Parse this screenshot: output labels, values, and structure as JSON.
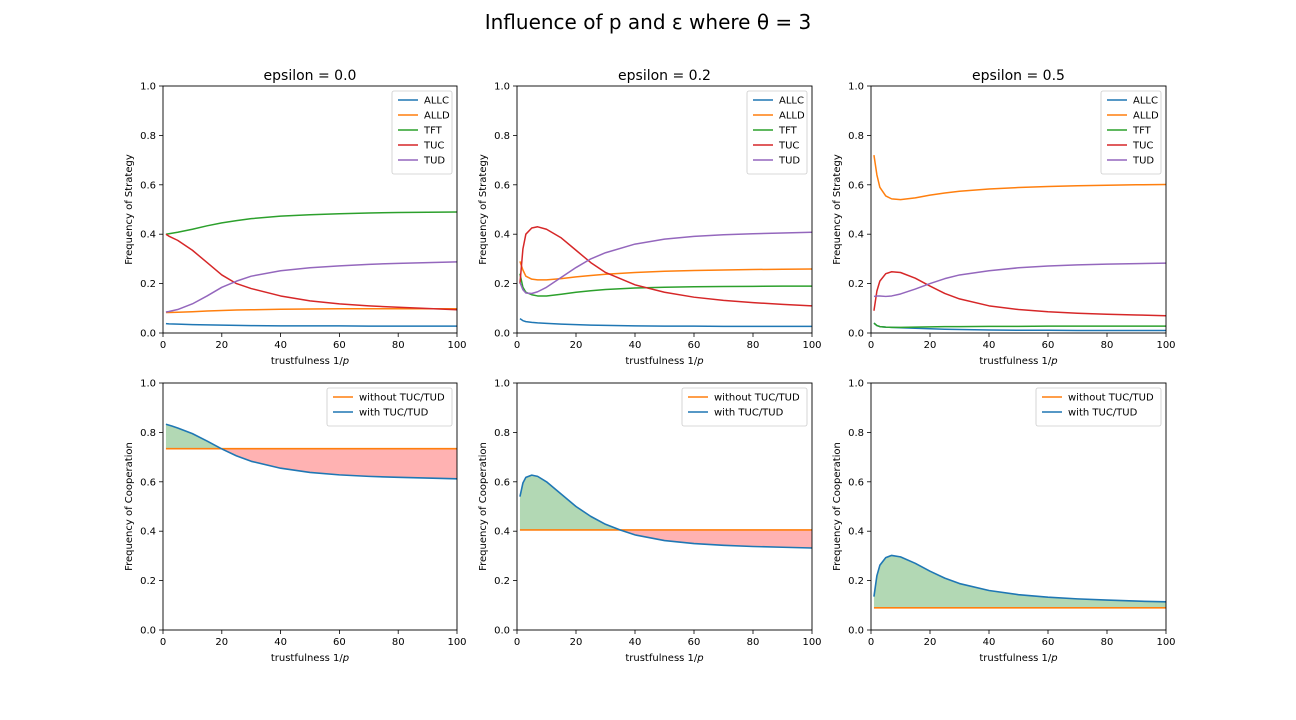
{
  "figure": {
    "suptitle": "Influence of p and ε where θ = 3"
  },
  "colors": {
    "ALLC": "#1f77b4",
    "ALLD": "#ff7f0e",
    "TFT": "#2ca02c",
    "TUC": "#d62728",
    "TUD": "#9467bd",
    "without": "#ff7f0e",
    "with": "#1f77b4",
    "gain_fill": "#b2d8b4",
    "loss_fill": "#ffb2b2"
  },
  "chart_data": [
    {
      "type": "line",
      "title": "epsilon = 0.0",
      "xlabel": "trustfulness 1/p",
      "ylabel": "Frequency of Strategy",
      "xlim": [
        0,
        100
      ],
      "ylim": [
        0,
        1
      ],
      "xticks": [
        0,
        20,
        40,
        60,
        80,
        100
      ],
      "yticks": [
        0.0,
        0.2,
        0.4,
        0.6,
        0.8,
        1.0
      ],
      "legend": "top-right",
      "x": [
        1,
        2,
        5,
        10,
        15,
        20,
        25,
        30,
        40,
        50,
        60,
        70,
        80,
        90,
        100
      ],
      "series": [
        {
          "name": "ALLC",
          "values": [
            0.038,
            0.037,
            0.036,
            0.034,
            0.033,
            0.032,
            0.031,
            0.03,
            0.029,
            0.029,
            0.029,
            0.028,
            0.028,
            0.028,
            0.028
          ]
        },
        {
          "name": "ALLD",
          "values": [
            0.083,
            0.083,
            0.084,
            0.086,
            0.089,
            0.091,
            0.093,
            0.094,
            0.096,
            0.097,
            0.098,
            0.098,
            0.098,
            0.098,
            0.098
          ]
        },
        {
          "name": "TFT",
          "values": [
            0.4,
            0.402,
            0.408,
            0.42,
            0.434,
            0.446,
            0.455,
            0.463,
            0.473,
            0.479,
            0.483,
            0.486,
            0.488,
            0.489,
            0.49
          ]
        },
        {
          "name": "TUC",
          "values": [
            0.4,
            0.392,
            0.375,
            0.335,
            0.285,
            0.235,
            0.2,
            0.18,
            0.15,
            0.13,
            0.118,
            0.11,
            0.104,
            0.099,
            0.094
          ]
        },
        {
          "name": "TUD",
          "values": [
            0.085,
            0.087,
            0.095,
            0.118,
            0.15,
            0.185,
            0.21,
            0.23,
            0.252,
            0.264,
            0.272,
            0.278,
            0.282,
            0.285,
            0.288
          ]
        }
      ]
    },
    {
      "type": "line",
      "title": "epsilon = 0.2",
      "xlabel": "trustfulness 1/p",
      "ylabel": "Frequency of Strategy",
      "xlim": [
        0,
        100
      ],
      "ylim": [
        0,
        1
      ],
      "xticks": [
        0,
        20,
        40,
        60,
        80,
        100
      ],
      "yticks": [
        0.0,
        0.2,
        0.4,
        0.6,
        0.8,
        1.0
      ],
      "legend": "top-right",
      "x": [
        1,
        2,
        3,
        5,
        7,
        10,
        15,
        20,
        25,
        30,
        40,
        50,
        60,
        70,
        80,
        90,
        100
      ],
      "series": [
        {
          "name": "ALLC",
          "values": [
            0.058,
            0.05,
            0.046,
            0.043,
            0.041,
            0.039,
            0.036,
            0.034,
            0.032,
            0.031,
            0.029,
            0.028,
            0.028,
            0.027,
            0.027,
            0.027,
            0.027
          ]
        },
        {
          "name": "ALLD",
          "values": [
            0.29,
            0.255,
            0.23,
            0.218,
            0.215,
            0.215,
            0.22,
            0.227,
            0.233,
            0.238,
            0.245,
            0.25,
            0.253,
            0.255,
            0.257,
            0.258,
            0.259
          ]
        },
        {
          "name": "TFT",
          "values": [
            0.24,
            0.185,
            0.165,
            0.155,
            0.15,
            0.15,
            0.157,
            0.165,
            0.171,
            0.176,
            0.182,
            0.185,
            0.187,
            0.188,
            0.189,
            0.19,
            0.19
          ]
        },
        {
          "name": "TUC",
          "values": [
            0.2,
            0.34,
            0.4,
            0.425,
            0.43,
            0.42,
            0.385,
            0.335,
            0.285,
            0.245,
            0.195,
            0.165,
            0.145,
            0.132,
            0.123,
            0.116,
            0.11
          ]
        },
        {
          "name": "TUD",
          "values": [
            0.205,
            0.175,
            0.162,
            0.16,
            0.167,
            0.185,
            0.225,
            0.265,
            0.3,
            0.325,
            0.36,
            0.38,
            0.391,
            0.398,
            0.402,
            0.405,
            0.408
          ]
        }
      ]
    },
    {
      "type": "line",
      "title": "epsilon = 0.5",
      "xlabel": "trustfulness 1/p",
      "ylabel": "Frequency of Strategy",
      "xlim": [
        0,
        100
      ],
      "ylim": [
        0,
        1
      ],
      "xticks": [
        0,
        20,
        40,
        60,
        80,
        100
      ],
      "yticks": [
        0.0,
        0.2,
        0.4,
        0.6,
        0.8,
        1.0
      ],
      "legend": "top-right",
      "x": [
        1,
        2,
        3,
        5,
        7,
        10,
        15,
        20,
        25,
        30,
        40,
        50,
        60,
        70,
        80,
        90,
        100
      ],
      "series": [
        {
          "name": "ALLC",
          "values": [
            0.04,
            0.03,
            0.026,
            0.024,
            0.023,
            0.021,
            0.019,
            0.017,
            0.015,
            0.014,
            0.012,
            0.011,
            0.011,
            0.01,
            0.01,
            0.01,
            0.01
          ]
        },
        {
          "name": "ALLD",
          "values": [
            0.72,
            0.64,
            0.59,
            0.555,
            0.543,
            0.54,
            0.547,
            0.558,
            0.567,
            0.574,
            0.583,
            0.589,
            0.593,
            0.596,
            0.598,
            0.6,
            0.601
          ]
        },
        {
          "name": "TFT",
          "values": [
            0.04,
            0.03,
            0.026,
            0.024,
            0.023,
            0.023,
            0.024,
            0.025,
            0.026,
            0.026,
            0.027,
            0.027,
            0.028,
            0.028,
            0.028,
            0.028,
            0.028
          ]
        },
        {
          "name": "TUC",
          "values": [
            0.09,
            0.17,
            0.21,
            0.24,
            0.248,
            0.245,
            0.222,
            0.19,
            0.16,
            0.138,
            0.11,
            0.095,
            0.086,
            0.08,
            0.076,
            0.073,
            0.07
          ]
        },
        {
          "name": "TUD",
          "values": [
            0.148,
            0.15,
            0.15,
            0.148,
            0.15,
            0.158,
            0.178,
            0.2,
            0.22,
            0.235,
            0.252,
            0.264,
            0.271,
            0.276,
            0.279,
            0.281,
            0.283
          ]
        }
      ]
    },
    {
      "type": "area",
      "xlabel": "trustfulness 1/p",
      "ylabel": "Frequency of Cooperation",
      "xlim": [
        0,
        100
      ],
      "ylim": [
        0,
        1
      ],
      "xticks": [
        0,
        20,
        40,
        60,
        80,
        100
      ],
      "yticks": [
        0.0,
        0.2,
        0.4,
        0.6,
        0.8,
        1.0
      ],
      "legend": "top-right",
      "x": [
        1,
        3,
        5,
        10,
        15,
        20,
        25,
        30,
        40,
        50,
        60,
        70,
        80,
        90,
        100
      ],
      "series": [
        {
          "name": "without TUC/TUD",
          "values": [
            0.734,
            0.734,
            0.734,
            0.734,
            0.734,
            0.734,
            0.734,
            0.734,
            0.734,
            0.734,
            0.734,
            0.734,
            0.734,
            0.734,
            0.734
          ]
        },
        {
          "name": "with TUC/TUD",
          "values": [
            0.833,
            0.826,
            0.818,
            0.795,
            0.765,
            0.733,
            0.705,
            0.683,
            0.655,
            0.638,
            0.628,
            0.622,
            0.618,
            0.615,
            0.612
          ]
        }
      ]
    },
    {
      "type": "area",
      "xlabel": "trustfulness 1/p",
      "ylabel": "Frequency of Cooperation",
      "xlim": [
        0,
        100
      ],
      "ylim": [
        0,
        1
      ],
      "xticks": [
        0,
        20,
        40,
        60,
        80,
        100
      ],
      "yticks": [
        0.0,
        0.2,
        0.4,
        0.6,
        0.8,
        1.0
      ],
      "legend": "top-right",
      "x": [
        1,
        2,
        3,
        5,
        7,
        10,
        15,
        20,
        25,
        30,
        35,
        40,
        50,
        60,
        70,
        80,
        90,
        100
      ],
      "series": [
        {
          "name": "without TUC/TUD",
          "values": [
            0.405,
            0.405,
            0.405,
            0.405,
            0.405,
            0.405,
            0.405,
            0.405,
            0.405,
            0.405,
            0.405,
            0.405,
            0.405,
            0.405,
            0.405,
            0.405,
            0.405,
            0.405
          ]
        },
        {
          "name": "with TUC/TUD",
          "values": [
            0.54,
            0.595,
            0.618,
            0.627,
            0.622,
            0.6,
            0.55,
            0.5,
            0.46,
            0.428,
            0.405,
            0.385,
            0.362,
            0.35,
            0.343,
            0.338,
            0.335,
            0.332
          ]
        }
      ]
    },
    {
      "type": "area",
      "xlabel": "trustfulness 1/p",
      "ylabel": "Frequency of Cooperation",
      "xlim": [
        0,
        100
      ],
      "ylim": [
        0,
        1
      ],
      "xticks": [
        0,
        20,
        40,
        60,
        80,
        100
      ],
      "yticks": [
        0.0,
        0.2,
        0.4,
        0.6,
        0.8,
        1.0
      ],
      "legend": "top-right",
      "x": [
        1,
        2,
        3,
        5,
        7,
        10,
        15,
        20,
        25,
        30,
        40,
        50,
        60,
        70,
        80,
        90,
        100
      ],
      "series": [
        {
          "name": "without TUC/TUD",
          "values": [
            0.09,
            0.09,
            0.09,
            0.09,
            0.09,
            0.09,
            0.09,
            0.09,
            0.09,
            0.09,
            0.09,
            0.09,
            0.09,
            0.09,
            0.09,
            0.09,
            0.09
          ]
        },
        {
          "name": "with TUC/TUD",
          "values": [
            0.135,
            0.22,
            0.262,
            0.293,
            0.302,
            0.296,
            0.27,
            0.238,
            0.21,
            0.188,
            0.16,
            0.143,
            0.133,
            0.126,
            0.121,
            0.117,
            0.114
          ]
        }
      ]
    }
  ]
}
